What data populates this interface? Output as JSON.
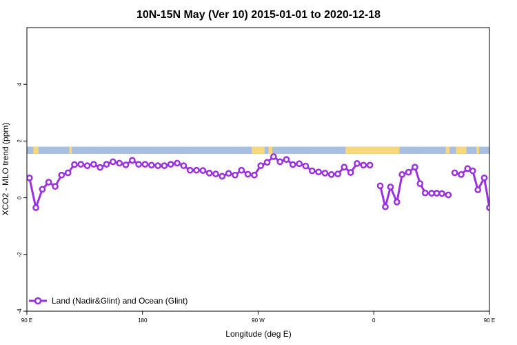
{
  "chart_data": {
    "type": "line",
    "title": "10N-15N May (Ver 10)   2015-01-01 to 2020-12-18",
    "xlabel": "Longitude (deg E)",
    "ylabel": "XCO2 - MLO trend (ppm)",
    "xlim": [
      90,
      450
    ],
    "ylim": [
      -4,
      6
    ],
    "x_ticks": [
      {
        "value": 90,
        "label": "90 E"
      },
      {
        "value": 180,
        "label": "180"
      },
      {
        "value": 270,
        "label": "90 W"
      },
      {
        "value": 360,
        "label": "0"
      },
      {
        "value": 450,
        "label": "90 E"
      },
      {
        "value": 540,
        "label": "180"
      }
    ],
    "y_ticks": [
      {
        "value": -4,
        "label": "-4"
      },
      {
        "value": -2,
        "label": "-2"
      },
      {
        "value": 0,
        "label": "0"
      },
      {
        "value": 2,
        "label": "2"
      },
      {
        "value": 4,
        "label": "4"
      }
    ],
    "grid": false,
    "legend_position": "bottom-left",
    "colors": {
      "series": "#9b30e0",
      "ocean": "#a8bee0",
      "land": "#f7d77a"
    },
    "land_ocean_strip": {
      "y_range": [
        1.55,
        1.8
      ],
      "land_spans": [
        [
          95,
          99
        ],
        [
          123,
          125
        ],
        [
          265,
          275
        ],
        [
          278,
          281
        ],
        [
          338,
          380
        ],
        [
          416,
          419
        ],
        [
          424,
          432
        ],
        [
          440,
          442
        ]
      ]
    },
    "series": [
      {
        "name": "Land (Nadir&Glint) and Ocean (Glint)",
        "segments": [
          {
            "x": [
              92,
              97,
              102,
              107,
              112,
              117,
              122,
              127,
              132,
              137,
              142,
              147,
              152,
              157,
              162,
              167,
              172,
              177,
              182,
              187,
              192,
              197,
              202,
              207,
              212,
              217,
              222,
              227,
              232,
              237,
              242,
              247,
              252,
              257,
              262,
              267,
              272,
              277,
              282,
              287,
              292,
              297,
              302,
              307,
              312,
              317,
              322,
              327,
              332,
              337,
              342,
              347,
              352,
              357
            ],
            "y": [
              0.7,
              -0.35,
              0.3,
              0.55,
              0.4,
              0.8,
              0.88,
              1.17,
              1.18,
              1.13,
              1.18,
              1.07,
              1.18,
              1.27,
              1.22,
              1.16,
              1.32,
              1.18,
              1.18,
              1.15,
              1.13,
              1.13,
              1.18,
              1.22,
              1.13,
              0.97,
              0.97,
              0.96,
              0.87,
              0.84,
              0.76,
              0.86,
              0.8,
              0.97,
              0.83,
              0.8,
              1.13,
              1.25,
              1.45,
              1.27,
              1.35,
              1.17,
              1.2,
              1.12,
              0.95,
              0.91,
              0.87,
              0.82,
              0.84,
              1.08,
              0.89,
              1.21,
              1.15,
              1.15
            ]
          },
          {
            "x": [
              365,
              369,
              373,
              378,
              382,
              387,
              392,
              396,
              400,
              405,
              409,
              413,
              418
            ],
            "y": [
              0.42,
              -0.32,
              0.38,
              -0.15,
              0.82,
              0.9,
              1.08,
              0.5,
              0.17,
              0.16,
              0.16,
              0.15,
              0.1
            ],
            "x_note": ""
          },
          {
            "x": [
              423,
              428,
              433,
              437,
              441,
              446,
              450
            ],
            "y": [
              0.88,
              0.82,
              1.03,
              0.95,
              0.28,
              0.7,
              -0.35
            ]
          }
        ]
      }
    ]
  }
}
